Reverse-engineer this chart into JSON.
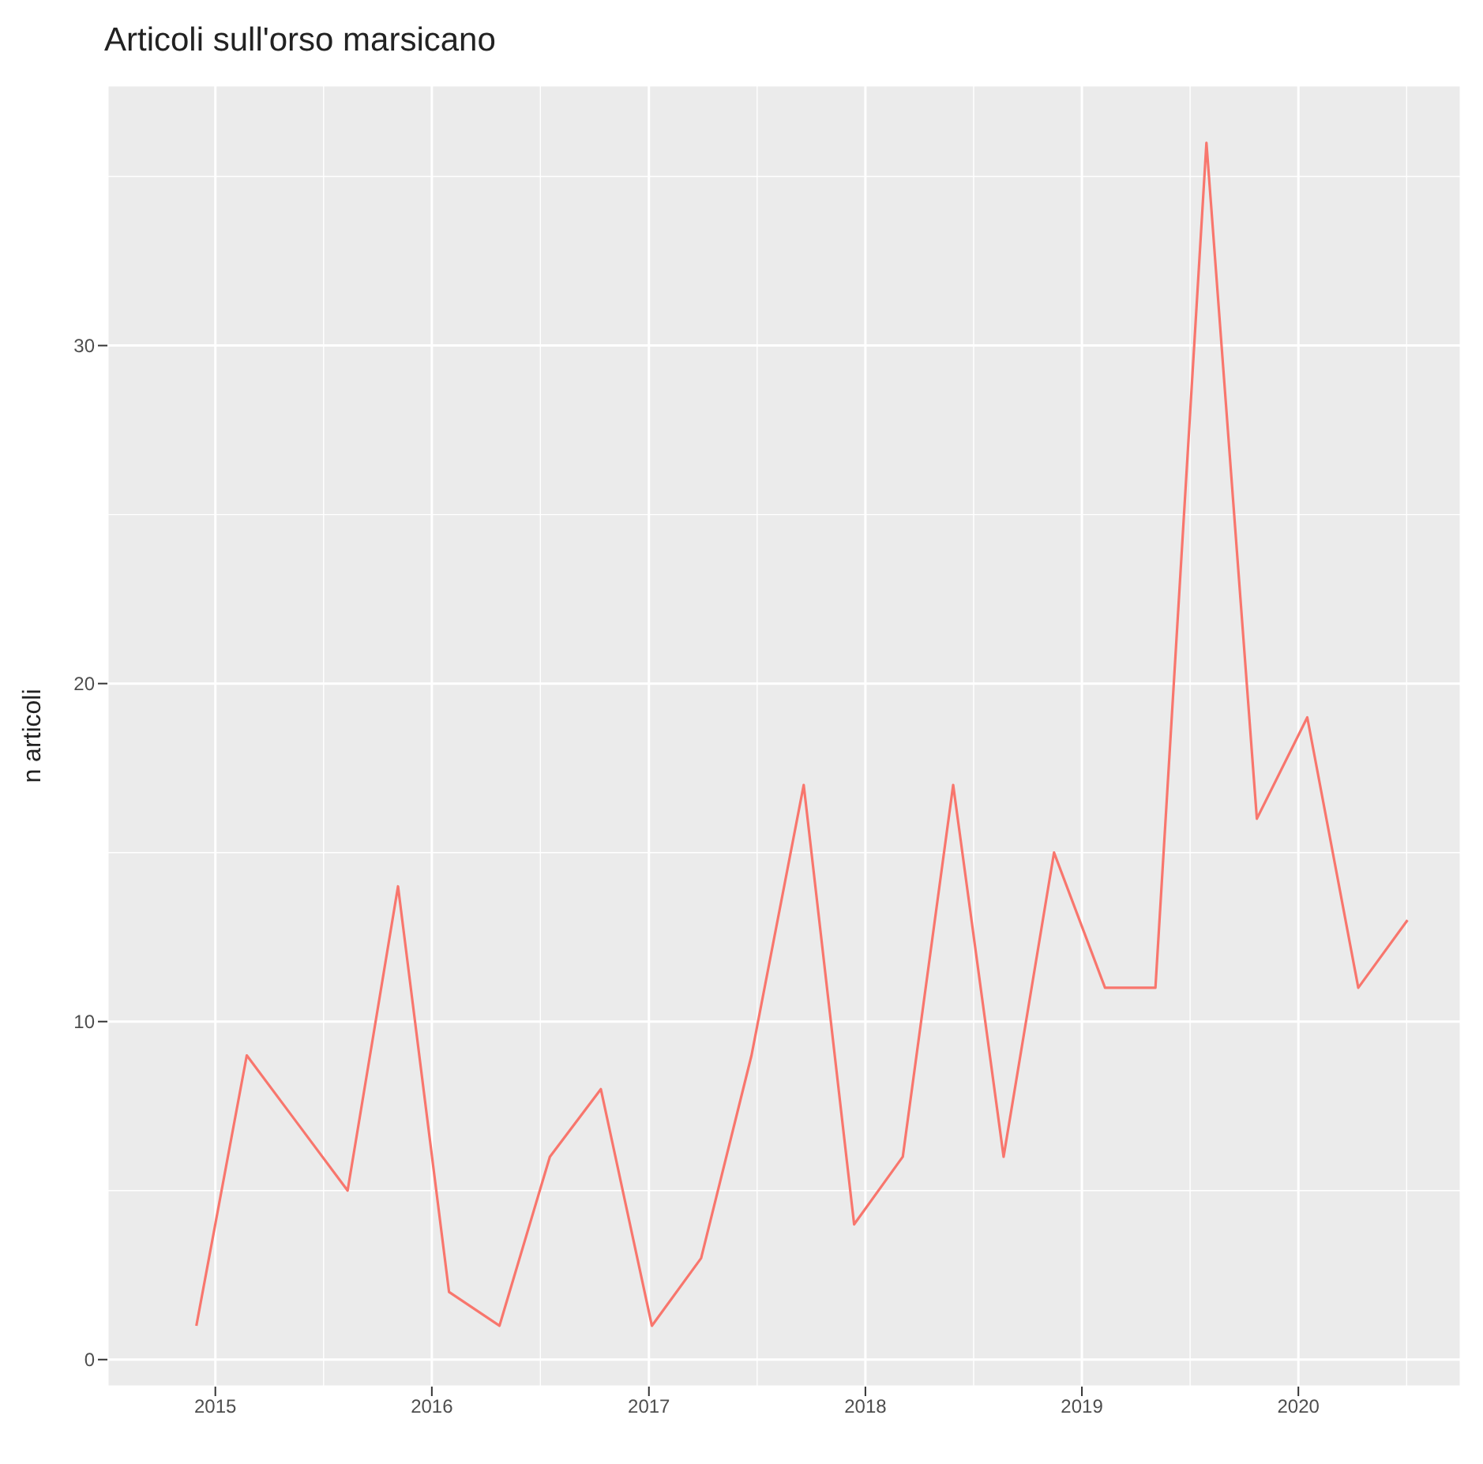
{
  "chart_data": {
    "type": "line",
    "title": "Articoli sull'orso marsicano",
    "ylabel": "n articoli",
    "x": [
      "2014-11-30",
      "2015-02-23",
      "2015-05-19",
      "2015-08-12",
      "2015-11-05",
      "2016-01-30",
      "2016-04-24",
      "2016-07-18",
      "2016-10-12",
      "2017-01-06",
      "2017-03-30",
      "2017-06-23",
      "2017-09-19",
      "2017-12-13",
      "2018-03-05",
      "2018-05-29",
      "2018-08-22",
      "2018-11-15",
      "2019-02-09",
      "2019-05-05",
      "2019-07-30",
      "2019-10-23",
      "2020-01-16",
      "2020-04-11",
      "2020-07-03"
    ],
    "series": [
      {
        "color": "#f8766d",
        "values": [
          1,
          9,
          7,
          5,
          14,
          2,
          1,
          6,
          8,
          1,
          3,
          9,
          17,
          4,
          6,
          17,
          6,
          15,
          11,
          11,
          36,
          16,
          19,
          11,
          13
        ]
      }
    ],
    "xlim": [
      "2014-07-03",
      "2020-10-01"
    ],
    "xticks": [
      "2015",
      "2016",
      "2017",
      "2018",
      "2019",
      "2020"
    ],
    "ylim": [
      -0.8,
      37.7
    ],
    "yticks": [
      0,
      10,
      20,
      30
    ],
    "grid": true,
    "marker": "none",
    "line_style": "solid"
  }
}
